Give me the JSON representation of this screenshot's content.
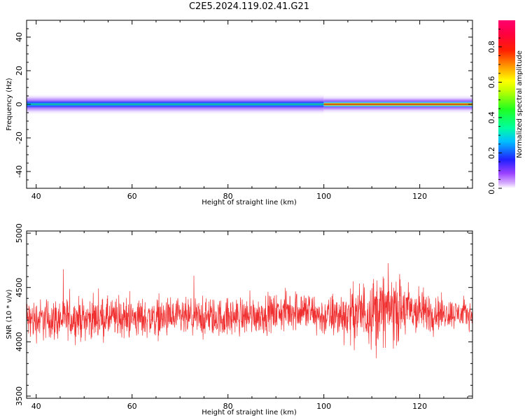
{
  "title": "C2E5.2024.119.02.41.G21",
  "chart_data": [
    {
      "type": "heatmap",
      "xlabel": "Height of straight line (km)",
      "ylabel": "Frequency (Hz)",
      "xlim": [
        38,
        131
      ],
      "ylim": [
        -50,
        50
      ],
      "xticks": [
        "40",
        "60",
        "80",
        "100",
        "120"
      ],
      "yticks": [
        "40",
        "20",
        "0",
        "-20",
        "-40"
      ],
      "colorbar": {
        "label": "Normalized spectral amplitude",
        "range": [
          0,
          0.95
        ],
        "ticks": [
          "0.0",
          "0.2",
          "0.4",
          "0.6",
          "0.8"
        ],
        "colormap": "gist_rainbow_reversed_with_white_low"
      },
      "description_of_signal": "narrow band centered near 0 Hz across all heights; amplitude ~0.4-0.55 below 100 km, ~0.9 (red) above 100 km",
      "band_segments": [
        {
          "x_start": 38,
          "x_end": 100,
          "peak_amplitude": 0.45
        },
        {
          "x_start": 100,
          "x_end": 131,
          "peak_amplitude": 0.9
        }
      ]
    },
    {
      "type": "line",
      "xlabel": "Height of straight line (km)",
      "ylabel": "SNR (10 * v/v)",
      "xlim": [
        38,
        131
      ],
      "ylim": [
        3480,
        5020
      ],
      "xticks": [
        "40",
        "60",
        "80",
        "100",
        "120"
      ],
      "yticks": [
        "5000",
        "4500",
        "4000",
        "3500"
      ],
      "series": [
        {
          "color": "#f03030",
          "envelope": [
            {
              "x": 38,
              "low": 3950,
              "high": 4450
            },
            {
              "x": 50,
              "low": 3980,
              "high": 4450
            },
            {
              "x": 60,
              "low": 3990,
              "high": 4450
            },
            {
              "x": 70,
              "low": 3990,
              "high": 4440
            },
            {
              "x": 80,
              "low": 4000,
              "high": 4450
            },
            {
              "x": 90,
              "low": 4050,
              "high": 4480
            },
            {
              "x": 95,
              "low": 4050,
              "high": 4550
            },
            {
              "x": 100,
              "low": 4000,
              "high": 4450
            },
            {
              "x": 105,
              "low": 3950,
              "high": 4550
            },
            {
              "x": 110,
              "low": 3880,
              "high": 4700
            },
            {
              "x": 115,
              "low": 3900,
              "high": 4700
            },
            {
              "x": 120,
              "low": 4000,
              "high": 4550
            },
            {
              "x": 125,
              "low": 4080,
              "high": 4450
            },
            {
              "x": 131,
              "low": 4100,
              "high": 4400
            }
          ]
        }
      ]
    }
  ]
}
